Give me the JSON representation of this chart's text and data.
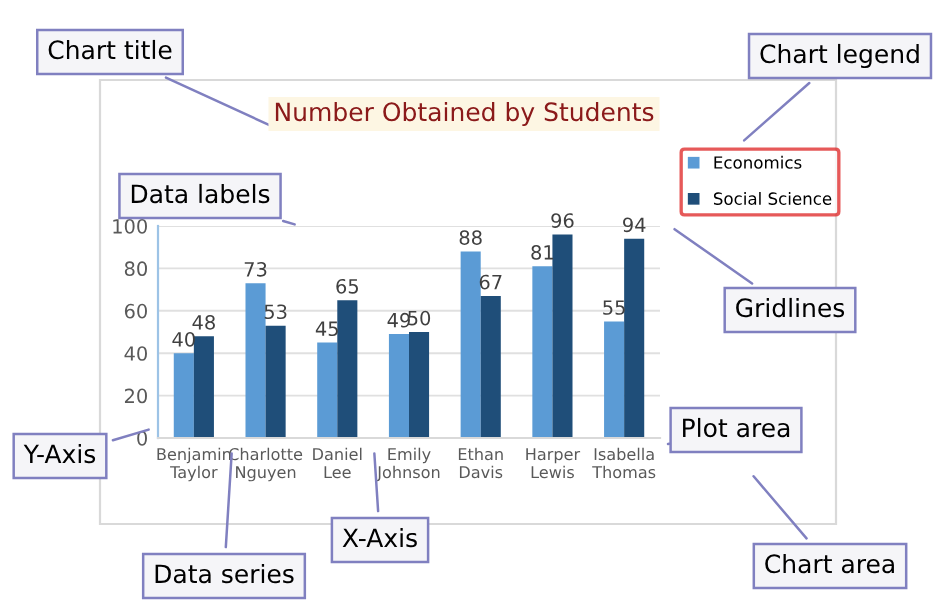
{
  "chart_data": {
    "type": "bar",
    "title": "Number Obtained by Students",
    "categories": [
      "Benjamin\nTaylor",
      "Charlotte\nNguyen",
      "Daniel\nLee",
      "Emily\nJohnson",
      "Ethan\nDavis",
      "Harper\nLewis",
      "Isabella\nThomas"
    ],
    "series": [
      {
        "name": "Economics",
        "color": "#5b9bd5",
        "values": [
          40,
          73,
          45,
          49,
          88,
          81,
          55
        ]
      },
      {
        "name": "Social Science",
        "color": "#1f4e79",
        "values": [
          48,
          53,
          65,
          50,
          67,
          96,
          94
        ]
      }
    ],
    "ylim": [
      0,
      100
    ],
    "yticks": [
      0,
      20,
      40,
      60,
      80,
      100
    ],
    "grid": "y",
    "legend": "right",
    "data_labels": true,
    "annotations": [
      "Chart title",
      "Chart legend",
      "Data labels",
      "Gridlines",
      "Y-Axis",
      "Plot area",
      "Data series",
      "X-Axis",
      "Chart area"
    ]
  }
}
